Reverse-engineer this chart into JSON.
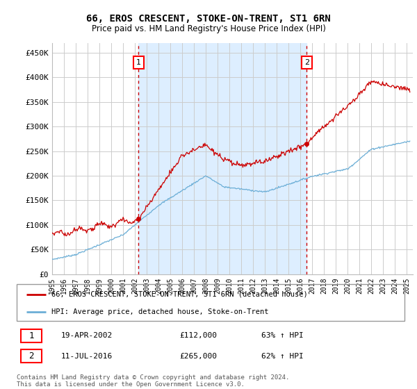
{
  "title": "66, EROS CRESCENT, STOKE-ON-TRENT, ST1 6RN",
  "subtitle": "Price paid vs. HM Land Registry's House Price Index (HPI)",
  "xlim_start": 1995.0,
  "xlim_end": 2025.5,
  "ylim_bottom": 0,
  "ylim_top": 470000,
  "yticks": [
    0,
    50000,
    100000,
    150000,
    200000,
    250000,
    300000,
    350000,
    400000,
    450000
  ],
  "ytick_labels": [
    "£0",
    "£50K",
    "£100K",
    "£150K",
    "£200K",
    "£250K",
    "£300K",
    "£350K",
    "£400K",
    "£450K"
  ],
  "xtick_years": [
    1995,
    1996,
    1997,
    1998,
    1999,
    2000,
    2001,
    2002,
    2003,
    2004,
    2005,
    2006,
    2007,
    2008,
    2009,
    2010,
    2011,
    2012,
    2013,
    2014,
    2015,
    2016,
    2017,
    2018,
    2019,
    2020,
    2021,
    2022,
    2023,
    2024,
    2025
  ],
  "hpi_color": "#6baed6",
  "price_color": "#cc0000",
  "vline_color": "#cc0000",
  "shade_color": "#ddeeff",
  "marker1_year": 2002.3,
  "marker1_price": 112000,
  "marker2_year": 2016.53,
  "marker2_price": 265000,
  "legend_label1": "66, EROS CRESCENT, STOKE-ON-TRENT, ST1 6RN (detached house)",
  "legend_label2": "HPI: Average price, detached house, Stoke-on-Trent",
  "table_row1_num": "1",
  "table_row1_date": "19-APR-2002",
  "table_row1_price": "£112,000",
  "table_row1_hpi": "63% ↑ HPI",
  "table_row2_num": "2",
  "table_row2_date": "11-JUL-2016",
  "table_row2_price": "£265,000",
  "table_row2_hpi": "62% ↑ HPI",
  "footer": "Contains HM Land Registry data © Crown copyright and database right 2024.\nThis data is licensed under the Open Government Licence v3.0.",
  "background_color": "#ffffff",
  "grid_color": "#cccccc"
}
